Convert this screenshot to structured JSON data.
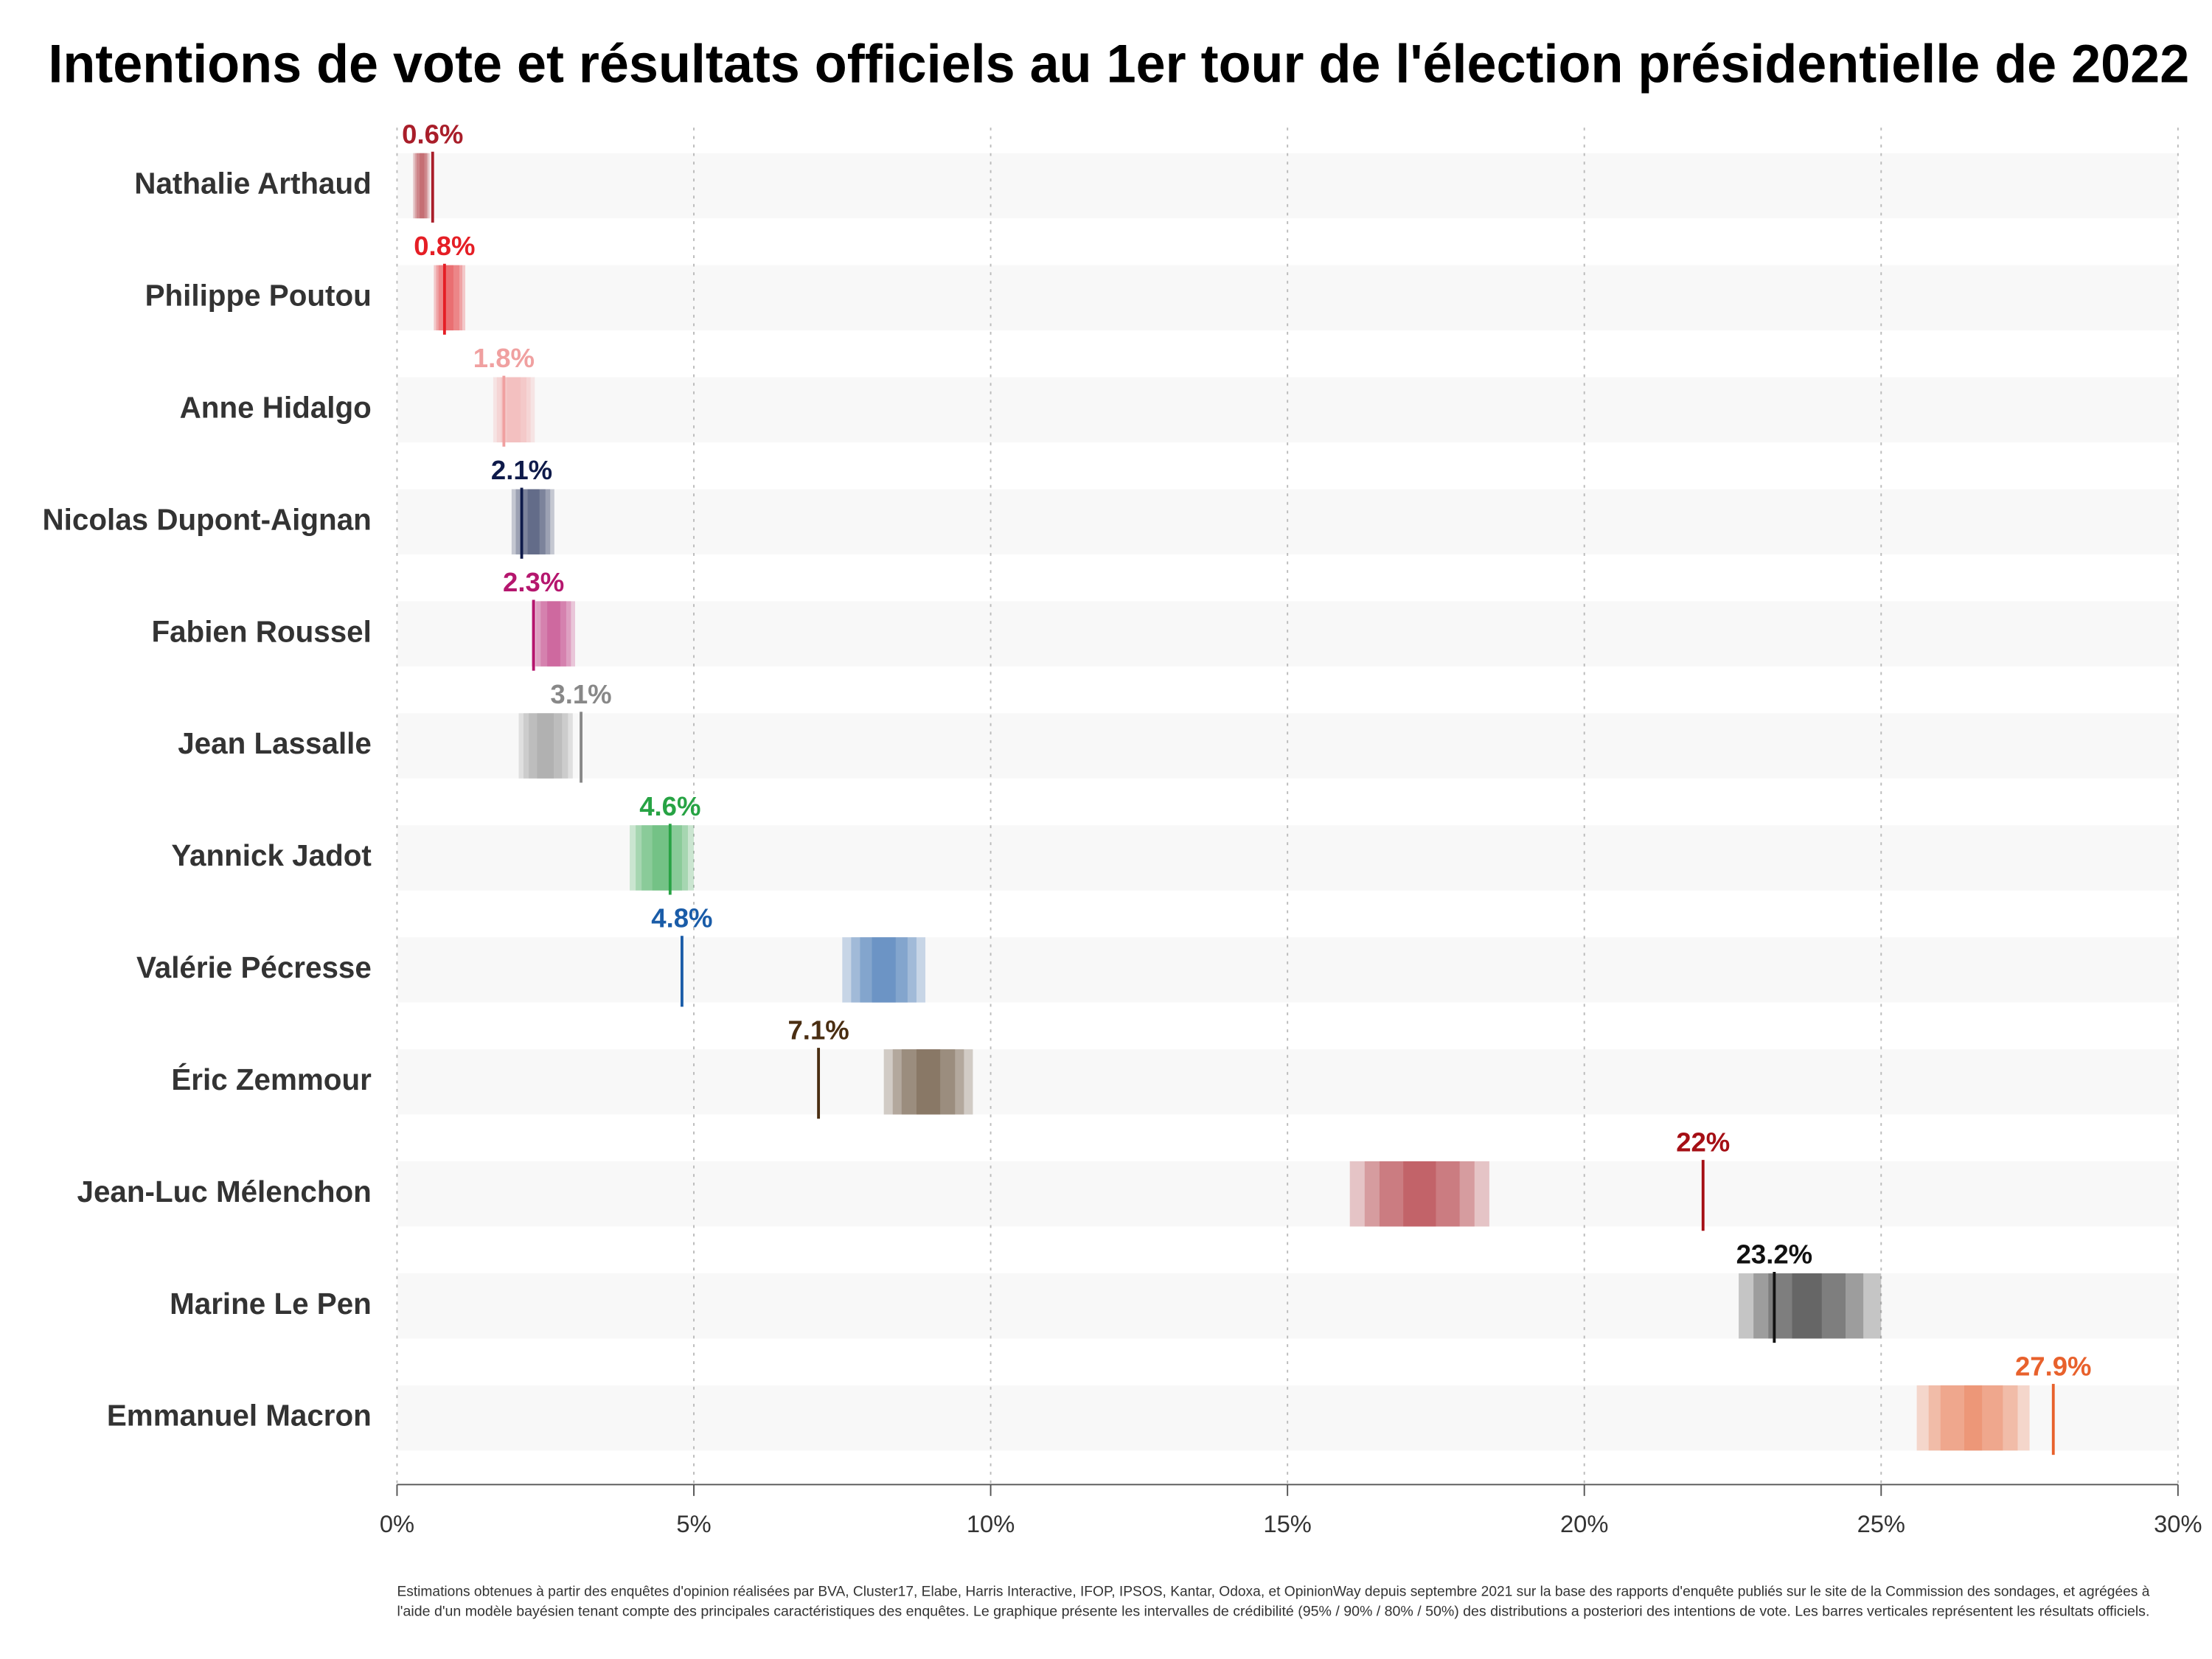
{
  "chart_data": {
    "type": "interval",
    "title": "Intentions de vote et résultats officiels au 1er tour de l'élection présidentielle de 2022",
    "categories": [
      "Nathalie Arthaud",
      "Philippe Poutou",
      "Anne Hidalgo",
      "Nicolas Dupont-Aignan",
      "Fabien Roussel",
      "Jean Lassalle",
      "Yannick Jadot",
      "Valérie Pécresse",
      "Éric Zemmour",
      "Jean-Luc Mélenchon",
      "Marine Le Pen",
      "Emmanuel Macron"
    ],
    "colors": [
      "#a91e2a",
      "#e51e25",
      "#f0a0a0",
      "#0e1a4a",
      "#b5166e",
      "#888888",
      "#27a344",
      "#1a5ca8",
      "#4a2e12",
      "#a50f15",
      "#111111",
      "#e8612c"
    ],
    "results": [
      0.6,
      0.8,
      1.8,
      2.1,
      2.3,
      3.1,
      4.6,
      4.8,
      7.1,
      22,
      23.2,
      27.9
    ],
    "value_labels": [
      "0.6%",
      "0.8%",
      "1.8%",
      "2.1%",
      "2.3%",
      "3.1%",
      "4.6%",
      "4.8%",
      "7.1%",
      "22%",
      "23.2%",
      "27.9%"
    ],
    "intervals_95": [
      [
        0.27,
        0.55
      ],
      [
        0.62,
        1.15
      ],
      [
        1.62,
        2.32
      ],
      [
        1.93,
        2.65
      ],
      [
        2.27,
        3.0
      ],
      [
        2.05,
        2.96
      ],
      [
        3.92,
        5.0
      ],
      [
        7.5,
        8.9
      ],
      [
        8.2,
        9.7
      ],
      [
        16.05,
        18.4
      ],
      [
        22.6,
        25.0
      ],
      [
        25.6,
        27.5
      ]
    ],
    "intervals_90": [
      [
        0.3,
        0.52
      ],
      [
        0.66,
        1.1
      ],
      [
        1.68,
        2.25
      ],
      [
        2.0,
        2.58
      ],
      [
        2.34,
        2.93
      ],
      [
        2.13,
        2.88
      ],
      [
        4.02,
        4.9
      ],
      [
        7.65,
        8.75
      ],
      [
        8.35,
        9.55
      ],
      [
        16.3,
        18.15
      ],
      [
        22.85,
        24.7
      ],
      [
        25.8,
        27.3
      ]
    ],
    "intervals_80": [
      [
        0.33,
        0.5
      ],
      [
        0.7,
        1.05
      ],
      [
        1.75,
        2.18
      ],
      [
        2.08,
        2.5
      ],
      [
        2.42,
        2.85
      ],
      [
        2.22,
        2.78
      ],
      [
        4.12,
        4.8
      ],
      [
        7.8,
        8.6
      ],
      [
        8.5,
        9.4
      ],
      [
        16.55,
        17.9
      ],
      [
        23.1,
        24.4
      ],
      [
        26.0,
        27.05
      ]
    ],
    "intervals_50": [
      [
        0.38,
        0.46
      ],
      [
        0.8,
        0.95
      ],
      [
        1.85,
        2.08
      ],
      [
        2.2,
        2.4
      ],
      [
        2.53,
        2.75
      ],
      [
        2.36,
        2.64
      ],
      [
        4.3,
        4.62
      ],
      [
        8.0,
        8.4
      ],
      [
        8.75,
        9.15
      ],
      [
        16.95,
        17.5
      ],
      [
        23.5,
        24.0
      ],
      [
        26.4,
        26.7
      ]
    ],
    "xlim": [
      0,
      30
    ],
    "xticks": [
      {
        "value": 0,
        "label": "0%"
      },
      {
        "value": 5,
        "label": "5%"
      },
      {
        "value": 10,
        "label": "10%"
      },
      {
        "value": 15,
        "label": "15%"
      },
      {
        "value": 20,
        "label": "20%"
      },
      {
        "value": 25,
        "label": "25%"
      },
      {
        "value": 30,
        "label": "30%"
      }
    ],
    "grid": true,
    "note": [
      "Estimations obtenues à partir des enquêtes d'opinion réalisées par BVA, Cluster17, Elabe, Harris Interactive, IFOP, IPSOS, Kantar, Odoxa, et OpinionWay depuis septembre 2021 sur la base des rapports d'enquête publiés sur le site de la Commission des sondages, et agrégées à",
      "l'aide d'un modèle bayésien tenant compte des principales caractéristiques des enquêtes. Le graphique présente les intervalles de crédibilité (95% / 90% / 80% / 50%) des distributions a posteriori des intentions de vote. Les barres verticales représentent les résultats officiels."
    ]
  }
}
